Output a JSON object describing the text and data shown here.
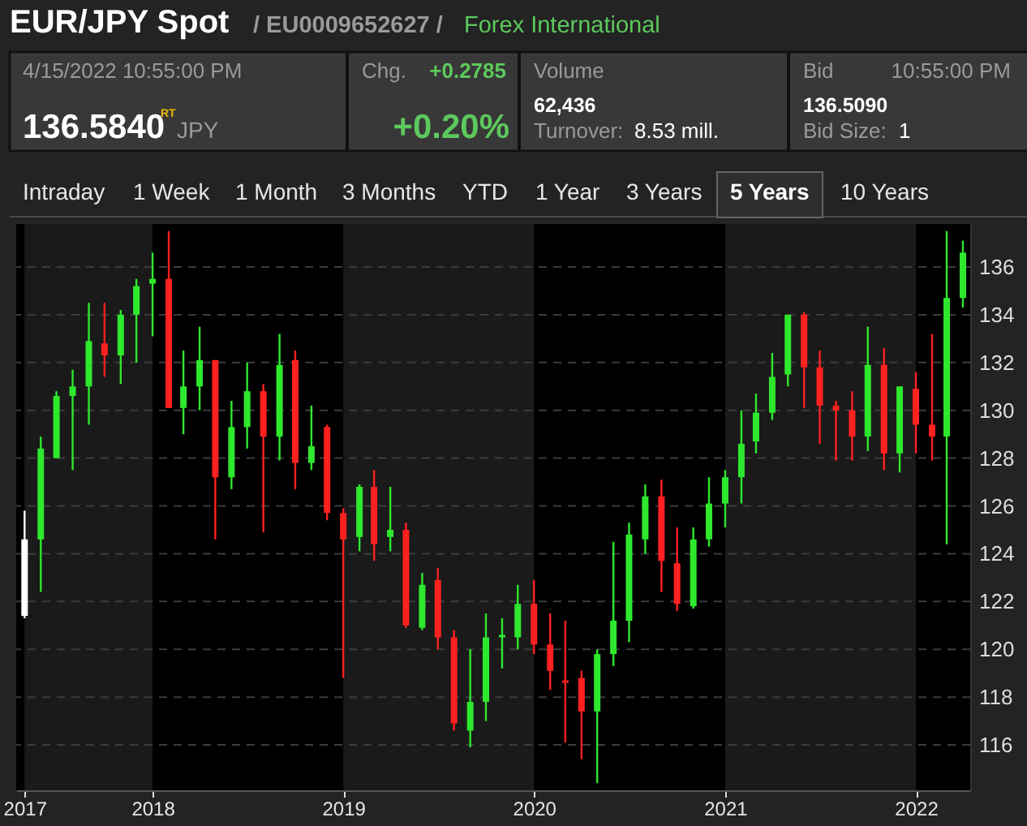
{
  "chart_data": {
    "type": "candlestick",
    "title": "EUR/JPY Spot",
    "annotations": [
      "/ EU0009652627 /",
      "Forex International",
      "4/15/2022  10:55:00 PM",
      "136.5840",
      "RT",
      "JPY",
      "Chg.",
      "+0.2785",
      "+0.20%",
      "Volume",
      "62,436",
      "Turnover:",
      "8.53 mill.",
      "Bid",
      "10:55:00 PM",
      "136.5090",
      "Bid Size:",
      "1",
      "Intraday",
      "1 Week",
      "1 Month",
      "3 Months",
      "YTD",
      "1 Year",
      "3 Years",
      "5 Years",
      "10 Years"
    ],
    "x": [
      "2017-05-01",
      "2017-06-01",
      "2017-07-01",
      "2017-08-01",
      "2017-09-01",
      "2017-10-01",
      "2017-11-01",
      "2017-12-01",
      "2018-01-01",
      "2018-02-01",
      "2018-03-01",
      "2018-04-01",
      "2018-05-01",
      "2018-06-01",
      "2018-07-01",
      "2018-08-01",
      "2018-09-01",
      "2018-10-01",
      "2018-11-01",
      "2018-12-01",
      "2019-01-01",
      "2019-02-01",
      "2019-03-01",
      "2019-04-01",
      "2019-05-01",
      "2019-06-01",
      "2019-07-01",
      "2019-08-01",
      "2019-09-01",
      "2019-10-01",
      "2019-11-01",
      "2019-12-01",
      "2020-01-01",
      "2020-02-01",
      "2020-03-01",
      "2020-04-01",
      "2020-05-01",
      "2020-06-01",
      "2020-07-01",
      "2020-08-01",
      "2020-09-01",
      "2020-10-01",
      "2020-11-01",
      "2020-12-01",
      "2021-01-01",
      "2021-02-01",
      "2021-03-01",
      "2021-04-01",
      "2021-05-01",
      "2021-06-01",
      "2021-07-01",
      "2021-08-01",
      "2021-09-01",
      "2021-10-01",
      "2021-11-01",
      "2021-12-01",
      "2022-01-01",
      "2022-02-01",
      "2022-03-01",
      "2022-04-01"
    ],
    "ohlc": [
      [
        121.4,
        125.8,
        121.3,
        124.6
      ],
      [
        124.6,
        128.9,
        122.4,
        128.4
      ],
      [
        128.0,
        130.8,
        128.0,
        130.6
      ],
      [
        130.6,
        131.7,
        127.5,
        131.0
      ],
      [
        131.0,
        134.5,
        129.4,
        132.9
      ],
      [
        132.8,
        134.5,
        131.4,
        132.3
      ],
      [
        132.3,
        134.2,
        131.1,
        134.0
      ],
      [
        134.0,
        135.5,
        132.0,
        135.2
      ],
      [
        135.3,
        136.6,
        133.1,
        135.5
      ],
      [
        135.5,
        137.5,
        130.1,
        130.1
      ],
      [
        130.1,
        132.5,
        129.0,
        131.0
      ],
      [
        131.0,
        133.5,
        130.0,
        132.1
      ],
      [
        132.1,
        132.1,
        124.6,
        127.2
      ],
      [
        127.2,
        130.4,
        126.7,
        129.3
      ],
      [
        129.3,
        132.0,
        128.4,
        130.8
      ],
      [
        130.8,
        131.1,
        124.9,
        128.9
      ],
      [
        128.9,
        133.2,
        127.9,
        131.9
      ],
      [
        132.1,
        132.5,
        126.7,
        127.8
      ],
      [
        127.8,
        130.2,
        127.5,
        128.5
      ],
      [
        129.3,
        129.4,
        125.4,
        125.7
      ],
      [
        125.7,
        125.9,
        118.8,
        124.6
      ],
      [
        124.7,
        126.9,
        124.1,
        126.8
      ],
      [
        126.8,
        127.5,
        123.7,
        124.4
      ],
      [
        124.7,
        126.8,
        124.1,
        125.0
      ],
      [
        125.0,
        125.3,
        120.9,
        121.0
      ],
      [
        120.9,
        123.2,
        120.8,
        122.7
      ],
      [
        122.9,
        123.4,
        120.0,
        120.5
      ],
      [
        120.5,
        120.8,
        116.6,
        116.9
      ],
      [
        116.6,
        120.0,
        115.9,
        117.8
      ],
      [
        117.8,
        121.5,
        117.0,
        120.5
      ],
      [
        120.5,
        121.3,
        119.2,
        120.6
      ],
      [
        120.5,
        122.7,
        120.0,
        121.9
      ],
      [
        121.9,
        122.9,
        119.8,
        120.2
      ],
      [
        120.2,
        121.5,
        118.3,
        119.1
      ],
      [
        118.6,
        121.2,
        116.1,
        118.7
      ],
      [
        118.8,
        119.1,
        115.4,
        117.4
      ],
      [
        117.4,
        120.0,
        114.4,
        119.8
      ],
      [
        119.8,
        124.5,
        119.3,
        121.2
      ],
      [
        121.2,
        125.3,
        120.3,
        124.8
      ],
      [
        124.6,
        126.9,
        124.0,
        126.4
      ],
      [
        126.4,
        127.1,
        122.4,
        123.7
      ],
      [
        123.6,
        125.1,
        121.6,
        121.9
      ],
      [
        121.8,
        125.1,
        121.7,
        124.6
      ],
      [
        124.6,
        127.2,
        124.3,
        126.1
      ],
      [
        126.1,
        127.5,
        125.1,
        127.2
      ],
      [
        127.2,
        130.0,
        126.1,
        128.6
      ],
      [
        128.7,
        130.7,
        128.2,
        129.9
      ],
      [
        129.9,
        132.4,
        129.6,
        131.4
      ],
      [
        131.5,
        134.0,
        131.0,
        134.0
      ],
      [
        134.0,
        134.1,
        130.1,
        131.8
      ],
      [
        131.8,
        132.5,
        128.6,
        130.2
      ],
      [
        130.2,
        130.4,
        127.9,
        130.0
      ],
      [
        130.0,
        130.8,
        127.9,
        128.9
      ],
      [
        128.9,
        133.5,
        128.3,
        131.9
      ],
      [
        131.9,
        132.6,
        127.5,
        128.2
      ],
      [
        128.2,
        131.0,
        127.4,
        131.0
      ],
      [
        130.9,
        131.6,
        128.2,
        129.4
      ],
      [
        129.4,
        133.2,
        127.9,
        128.9
      ],
      [
        128.9,
        137.5,
        124.4,
        134.7
      ],
      [
        134.7,
        137.1,
        134.3,
        136.6
      ]
    ],
    "colors": [
      "#ffffff",
      "#2ee82e",
      "#2ee82e",
      "#2ee82e",
      "#2ee82e",
      "#ff2020",
      "#2ee82e",
      "#2ee82e",
      "#2ee82e",
      "#ff2020",
      "#2ee82e",
      "#2ee82e",
      "#ff2020",
      "#2ee82e",
      "#2ee82e",
      "#ff2020",
      "#2ee82e",
      "#ff2020",
      "#2ee82e",
      "#ff2020",
      "#ff2020",
      "#2ee82e",
      "#ff2020",
      "#2ee82e",
      "#ff2020",
      "#2ee82e",
      "#ff2020",
      "#ff2020",
      "#2ee82e",
      "#2ee82e",
      "#2ee82e",
      "#2ee82e",
      "#ff2020",
      "#ff2020",
      "#ff2020",
      "#ff2020",
      "#2ee82e",
      "#2ee82e",
      "#2ee82e",
      "#2ee82e",
      "#ff2020",
      "#ff2020",
      "#2ee82e",
      "#2ee82e",
      "#2ee82e",
      "#2ee82e",
      "#2ee82e",
      "#2ee82e",
      "#2ee82e",
      "#ff2020",
      "#ff2020",
      "#ff2020",
      "#ff2020",
      "#2ee82e",
      "#ff2020",
      "#2ee82e",
      "#ff2020",
      "#ff2020",
      "#2ee82e",
      "#2ee82e"
    ],
    "xlim": [
      "2017-04-15",
      "2022-04-15"
    ],
    "xticks": [
      {
        "value": "2017-05-01",
        "label": "2017"
      },
      "2018",
      "2019",
      "2020",
      "2021",
      "2022"
    ],
    "ylim": [
      114.1,
      137.8
    ],
    "yticks": [
      116,
      118,
      120,
      122,
      124,
      126,
      128,
      130,
      132,
      134,
      136
    ],
    "grid": "y",
    "bands": [
      {
        "axis": "x",
        "from": "2017-05-01",
        "to": "2018-01-01",
        "color": "#1a1a1a"
      },
      {
        "axis": "x",
        "from": "2019-01-01",
        "to": "2020-01-01",
        "color": "#1a1a1a"
      },
      {
        "axis": "x",
        "from": "2021-01-01",
        "to": "2022-01-01",
        "color": "#1a1a1a"
      }
    ]
  }
}
